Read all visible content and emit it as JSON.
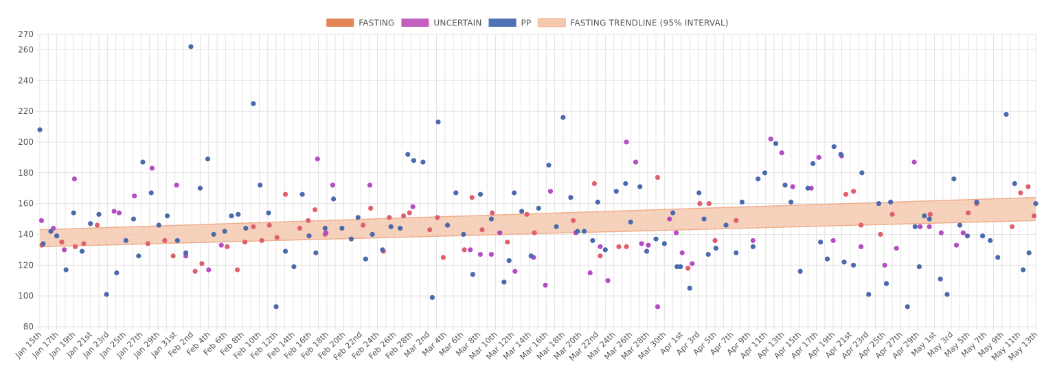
{
  "colors": {
    "fasting": "#e05f6e",
    "uncertain": "#b34ec2",
    "pp": "#4a6aad",
    "fasting_legend": "#e58658",
    "uncertain_legend": "#c35fbf",
    "pp_legend": "#4f73b3",
    "band_fill": "#f5c9b0",
    "band_edge": "#eeb08d"
  },
  "legend": [
    {
      "key": "fasting",
      "label": "FASTING"
    },
    {
      "key": "uncertain",
      "label": "UNCERTAIN"
    },
    {
      "key": "pp",
      "label": "PP"
    },
    {
      "key": "band",
      "label": "FASTING TRENDLINE (95% INTERVAL)"
    }
  ],
  "chart_data": {
    "type": "scatter",
    "grid": true,
    "legend_position": "top",
    "ylim": [
      80,
      270
    ],
    "y_ticks": [
      80,
      100,
      120,
      140,
      160,
      180,
      200,
      220,
      240,
      260,
      270
    ],
    "x_range_days": [
      0,
      118
    ],
    "x_tick_labels": [
      "Jan 15th",
      "Jan 17th",
      "Jan 19th",
      "Jan 21st",
      "Jan 23rd",
      "Jan 25th",
      "Jan 27th",
      "Jan 29th",
      "Jan 31st",
      "Feb 2nd",
      "Feb 4th",
      "Feb 6th",
      "Feb 8th",
      "Feb 10th",
      "Feb 12th",
      "Feb 14th",
      "Feb 16th",
      "Feb 18th",
      "Feb 20th",
      "Feb 22nd",
      "Feb 24th",
      "Feb 26th",
      "Feb 28th",
      "Mar 2nd",
      "Mar 4th",
      "Mar 6th",
      "Mar 8th",
      "Mar 10th",
      "Mar 12th",
      "Mar 14th",
      "Mar 16th",
      "Mar 18th",
      "Mar 20th",
      "Mar 22nd",
      "Mar 24th",
      "Mar 26th",
      "Mar 28th",
      "Mar 30th",
      "Apr 1st",
      "Apr 3rd",
      "Apr 5th",
      "Apr 7th",
      "Apr 9th",
      "Apr 11th",
      "Apr 13th",
      "Apr 15th",
      "Apr 17th",
      "Apr 19th",
      "Apr 21st",
      "Apr 23rd",
      "Apr 25th",
      "Apr 27th",
      "Apr 29th",
      "May 1st",
      "May 3rd",
      "May 5th",
      "May 7th",
      "May 9th",
      "May 11th",
      "May 13th"
    ],
    "trendline_band": {
      "x": [
        0,
        118
      ],
      "lower": [
        132,
        149
      ],
      "upper": [
        143,
        164
      ]
    },
    "series": [
      {
        "name": "FASTING",
        "key": "fasting",
        "points": [
          [
            0.25,
            133
          ],
          [
            2.6,
            135
          ],
          [
            4.2,
            132
          ],
          [
            5.2,
            134
          ],
          [
            6.8,
            146
          ],
          [
            12.8,
            134
          ],
          [
            14.8,
            136
          ],
          [
            15.8,
            126
          ],
          [
            18.4,
            116
          ],
          [
            19.2,
            121
          ],
          [
            22.2,
            132
          ],
          [
            23.4,
            117
          ],
          [
            24.3,
            135
          ],
          [
            25.3,
            145
          ],
          [
            26.3,
            136
          ],
          [
            27.2,
            146
          ],
          [
            28.1,
            138
          ],
          [
            29.1,
            166
          ],
          [
            30.8,
            144
          ],
          [
            31.8,
            149
          ],
          [
            32.6,
            156
          ],
          [
            33.8,
            140
          ],
          [
            38.3,
            146
          ],
          [
            39.2,
            157
          ],
          [
            40.7,
            129
          ],
          [
            41.4,
            151
          ],
          [
            43.1,
            152
          ],
          [
            43.8,
            154
          ],
          [
            46.2,
            143
          ],
          [
            47.1,
            151
          ],
          [
            47.8,
            125
          ],
          [
            50.3,
            130
          ],
          [
            51.2,
            164
          ],
          [
            52.4,
            143
          ],
          [
            53.6,
            154
          ],
          [
            54.5,
            141
          ],
          [
            55.4,
            135
          ],
          [
            57.7,
            153
          ],
          [
            58.6,
            141
          ],
          [
            63.2,
            149
          ],
          [
            65.7,
            173
          ],
          [
            66.4,
            126
          ],
          [
            68.6,
            132
          ],
          [
            69.5,
            132
          ],
          [
            73.2,
            177
          ],
          [
            76.8,
            118
          ],
          [
            78.2,
            160
          ],
          [
            79.3,
            160
          ],
          [
            80.0,
            136
          ],
          [
            82.5,
            149
          ],
          [
            95.5,
            166
          ],
          [
            96.4,
            168
          ],
          [
            97.3,
            146
          ],
          [
            99.6,
            140
          ],
          [
            101.0,
            153
          ],
          [
            105.5,
            153
          ],
          [
            110.0,
            154
          ],
          [
            111.0,
            160
          ],
          [
            115.2,
            145
          ],
          [
            116.2,
            167
          ],
          [
            117.1,
            171
          ],
          [
            117.8,
            152
          ]
        ]
      },
      {
        "name": "UNCERTAIN",
        "key": "uncertain",
        "points": [
          [
            0.2,
            149
          ],
          [
            1.6,
            144
          ],
          [
            2.9,
            130
          ],
          [
            4.1,
            176
          ],
          [
            8.8,
            155
          ],
          [
            9.4,
            154
          ],
          [
            11.2,
            165
          ],
          [
            13.3,
            183
          ],
          [
            16.2,
            172
          ],
          [
            17.3,
            126
          ],
          [
            20.0,
            117
          ],
          [
            21.5,
            133
          ],
          [
            32.9,
            189
          ],
          [
            33.9,
            141
          ],
          [
            34.7,
            172
          ],
          [
            39.1,
            172
          ],
          [
            44.2,
            158
          ],
          [
            51.0,
            130
          ],
          [
            52.2,
            127
          ],
          [
            53.5,
            127
          ],
          [
            54.5,
            141
          ],
          [
            56.3,
            116
          ],
          [
            58.5,
            125
          ],
          [
            59.9,
            107
          ],
          [
            60.5,
            168
          ],
          [
            63.5,
            141
          ],
          [
            65.2,
            115
          ],
          [
            66.4,
            132
          ],
          [
            67.3,
            110
          ],
          [
            69.5,
            200
          ],
          [
            70.6,
            187
          ],
          [
            71.3,
            134
          ],
          [
            72.1,
            133
          ],
          [
            73.2,
            93
          ],
          [
            74.6,
            150
          ],
          [
            75.4,
            141
          ],
          [
            76.1,
            128
          ],
          [
            77.3,
            121
          ],
          [
            84.5,
            136
          ],
          [
            86.6,
            202
          ],
          [
            87.9,
            193
          ],
          [
            89.2,
            171
          ],
          [
            91.4,
            170
          ],
          [
            92.3,
            190
          ],
          [
            94.0,
            136
          ],
          [
            95.0,
            191
          ],
          [
            97.3,
            132
          ],
          [
            100.1,
            120
          ],
          [
            101.5,
            131
          ],
          [
            103.6,
            187
          ],
          [
            104.3,
            145
          ],
          [
            105.4,
            145
          ],
          [
            106.8,
            141
          ],
          [
            108.6,
            133
          ],
          [
            109.4,
            141
          ]
        ]
      },
      {
        "name": "PP",
        "key": "pp",
        "points": [
          [
            0.0,
            208
          ],
          [
            0.4,
            134
          ],
          [
            1.3,
            142
          ],
          [
            2.0,
            139
          ],
          [
            3.1,
            117
          ],
          [
            4.0,
            154
          ],
          [
            5.0,
            129
          ],
          [
            6.0,
            147
          ],
          [
            7.0,
            153
          ],
          [
            7.9,
            101
          ],
          [
            9.1,
            115
          ],
          [
            10.2,
            136
          ],
          [
            11.1,
            150
          ],
          [
            11.7,
            126
          ],
          [
            12.2,
            187
          ],
          [
            13.2,
            167
          ],
          [
            14.1,
            146
          ],
          [
            15.1,
            152
          ],
          [
            16.3,
            136
          ],
          [
            17.3,
            128
          ],
          [
            17.9,
            262
          ],
          [
            19.0,
            170
          ],
          [
            19.9,
            189
          ],
          [
            20.6,
            140
          ],
          [
            21.9,
            142
          ],
          [
            22.7,
            152
          ],
          [
            23.5,
            153
          ],
          [
            24.4,
            144
          ],
          [
            25.3,
            225
          ],
          [
            26.1,
            172
          ],
          [
            27.1,
            154
          ],
          [
            28.0,
            93
          ],
          [
            29.1,
            129
          ],
          [
            30.1,
            119
          ],
          [
            31.1,
            166
          ],
          [
            31.9,
            139
          ],
          [
            32.7,
            128
          ],
          [
            33.8,
            144
          ],
          [
            34.8,
            163
          ],
          [
            35.8,
            144
          ],
          [
            36.9,
            137
          ],
          [
            37.7,
            151
          ],
          [
            38.6,
            124
          ],
          [
            39.4,
            140
          ],
          [
            40.6,
            130
          ],
          [
            41.6,
            145
          ],
          [
            42.7,
            144
          ],
          [
            43.6,
            192
          ],
          [
            44.3,
            188
          ],
          [
            45.4,
            187
          ],
          [
            46.5,
            99
          ],
          [
            47.2,
            213
          ],
          [
            48.3,
            146
          ],
          [
            49.3,
            167
          ],
          [
            50.2,
            140
          ],
          [
            51.3,
            114
          ],
          [
            52.2,
            166
          ],
          [
            53.5,
            150
          ],
          [
            55.0,
            109
          ],
          [
            55.6,
            123
          ],
          [
            56.2,
            167
          ],
          [
            57.1,
            155
          ],
          [
            58.2,
            126
          ],
          [
            59.1,
            157
          ],
          [
            60.3,
            185
          ],
          [
            61.2,
            145
          ],
          [
            62.0,
            216
          ],
          [
            62.9,
            164
          ],
          [
            63.7,
            142
          ],
          [
            64.5,
            142
          ],
          [
            65.5,
            136
          ],
          [
            66.1,
            161
          ],
          [
            67.0,
            130
          ],
          [
            68.3,
            168
          ],
          [
            69.4,
            173
          ],
          [
            70.0,
            148
          ],
          [
            71.1,
            171
          ],
          [
            71.9,
            129
          ],
          [
            73.0,
            137
          ],
          [
            74.0,
            134
          ],
          [
            75.0,
            154
          ],
          [
            75.5,
            119
          ],
          [
            75.9,
            119
          ],
          [
            77.0,
            105
          ],
          [
            78.1,
            167
          ],
          [
            78.7,
            150
          ],
          [
            79.2,
            127
          ],
          [
            80.1,
            131
          ],
          [
            81.3,
            146
          ],
          [
            82.5,
            128
          ],
          [
            83.2,
            161
          ],
          [
            84.5,
            132
          ],
          [
            85.1,
            176
          ],
          [
            85.9,
            180
          ],
          [
            87.2,
            199
          ],
          [
            88.3,
            172
          ],
          [
            89.0,
            161
          ],
          [
            90.1,
            116
          ],
          [
            91.0,
            170
          ],
          [
            91.6,
            186
          ],
          [
            92.5,
            135
          ],
          [
            93.3,
            124
          ],
          [
            94.1,
            197
          ],
          [
            94.9,
            192
          ],
          [
            95.3,
            122
          ],
          [
            96.4,
            120
          ],
          [
            97.4,
            180
          ],
          [
            98.2,
            101
          ],
          [
            99.4,
            160
          ],
          [
            100.3,
            108
          ],
          [
            100.8,
            161
          ],
          [
            102.8,
            93
          ],
          [
            103.7,
            145
          ],
          [
            104.2,
            119
          ],
          [
            104.8,
            152
          ],
          [
            105.4,
            150
          ],
          [
            106.7,
            111
          ],
          [
            107.5,
            101
          ],
          [
            108.3,
            176
          ],
          [
            109.0,
            146
          ],
          [
            109.9,
            139
          ],
          [
            111.0,
            161
          ],
          [
            111.7,
            139
          ],
          [
            112.6,
            136
          ],
          [
            113.5,
            125
          ],
          [
            114.5,
            218
          ],
          [
            115.5,
            173
          ],
          [
            116.5,
            117
          ],
          [
            117.2,
            128
          ],
          [
            118.0,
            160
          ]
        ]
      }
    ]
  }
}
